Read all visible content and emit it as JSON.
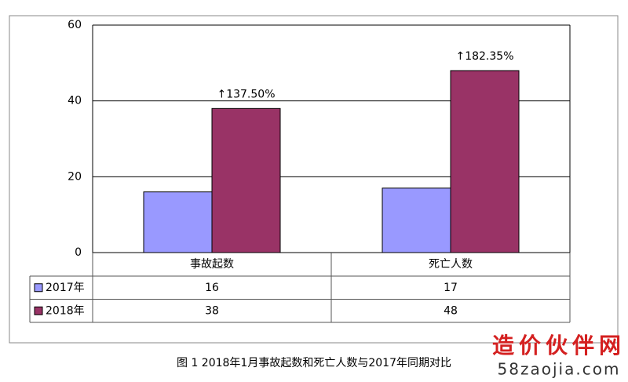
{
  "chart_data": {
    "type": "bar",
    "categories": [
      "事故起数",
      "死亡人数"
    ],
    "series": [
      {
        "name": "2017年",
        "color": "#9999ff",
        "values": [
          16,
          17
        ]
      },
      {
        "name": "2018年",
        "color": "#993366",
        "values": [
          38,
          48
        ]
      }
    ],
    "annotations": [
      "↑137.50%",
      "↑182.35%"
    ],
    "ylim": [
      0,
      60
    ],
    "yticks": [
      0,
      20,
      40,
      60
    ],
    "grid": true,
    "caption": "图 1  2018年1月事故起数和死亡人数与2017年同期对比"
  },
  "watermark": {
    "title": "造价伙伴网",
    "url": "58zaojia.com"
  }
}
